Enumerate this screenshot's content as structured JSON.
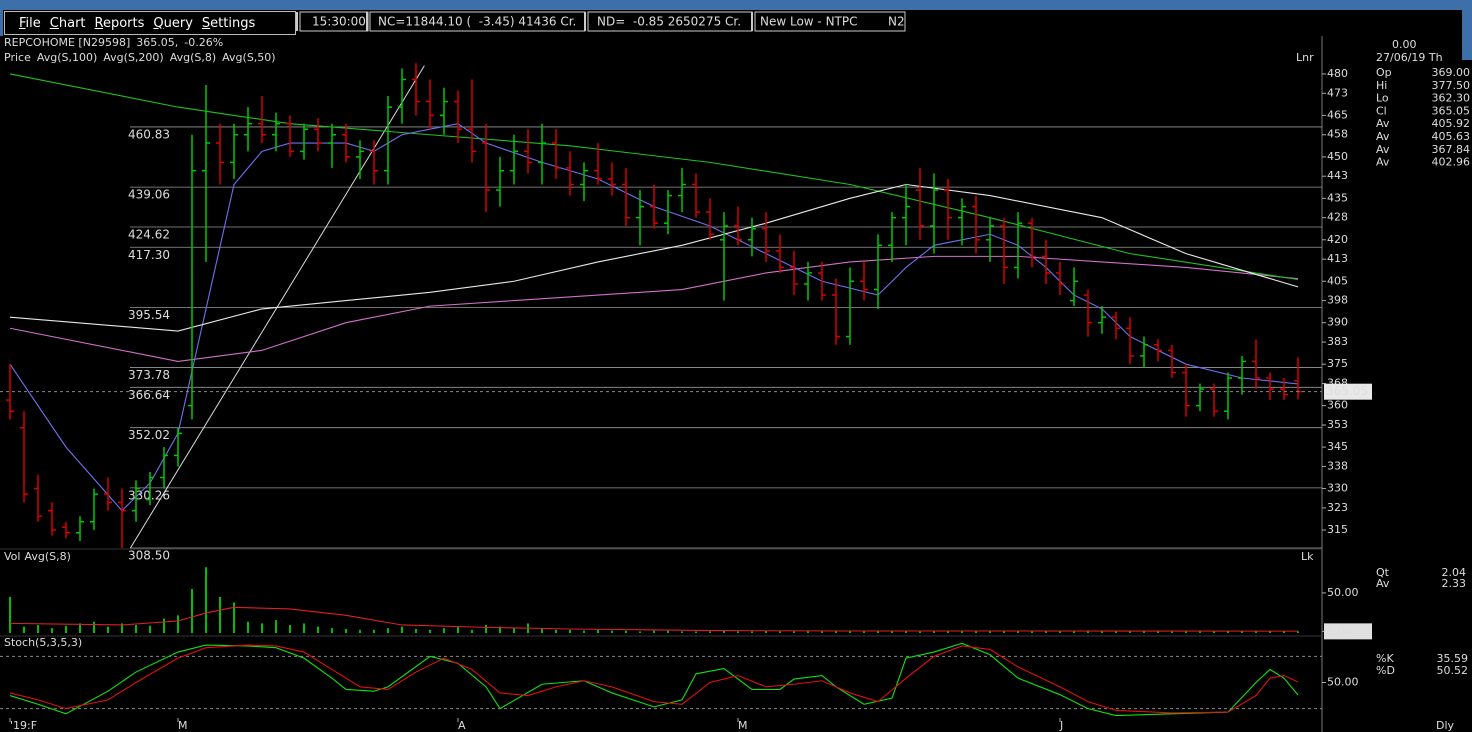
{
  "menu": [
    "File",
    "Chart",
    "Reports",
    "Query",
    "Settings"
  ],
  "toolbar": {
    "time": "15:30:00",
    "nc": "NC=11844.10 (  -3.45) 41436 Cr.",
    "nd": "ND=  -0.85 2650275 Cr.",
    "alert": "New Low - NTPC",
    "alert_code": "N2"
  },
  "header": {
    "symbol": "REPCOHOME [N29598]",
    "price": "365.05,",
    "change": "-0.26%"
  },
  "price_panel": {
    "type": "ohlc",
    "price_label": "Price",
    "up_color": "#00c800",
    "down_color": "#d80000",
    "scale_label": "Lnr",
    "lock_label": "Lk",
    "ylim": [
      308.5,
      493
    ],
    "yticks": [
      480,
      473,
      465,
      458,
      450,
      443,
      435,
      428,
      420,
      413,
      405,
      398,
      390,
      383,
      375,
      368,
      360,
      353,
      345,
      338,
      330,
      323,
      315
    ],
    "bars": [
      [
        362,
        375,
        355,
        358
      ],
      [
        352,
        358,
        325,
        328
      ],
      [
        330,
        335,
        318,
        320
      ],
      [
        322,
        325,
        313,
        315
      ],
      [
        316,
        318,
        312,
        314
      ],
      [
        314,
        320,
        311,
        318
      ],
      [
        318,
        330,
        315,
        328
      ],
      [
        328,
        334,
        322,
        325
      ],
      [
        325,
        330,
        308.5,
        322
      ],
      [
        322,
        333,
        318,
        330
      ],
      [
        326,
        336,
        324,
        334
      ],
      [
        334,
        345,
        330,
        342
      ],
      [
        342,
        352,
        338,
        350
      ],
      [
        360,
        458,
        355,
        445
      ],
      [
        445,
        476,
        412,
        455
      ],
      [
        455,
        462,
        440,
        448
      ],
      [
        448,
        462,
        442,
        458
      ],
      [
        458,
        468,
        452,
        462
      ],
      [
        462,
        472,
        455,
        458
      ],
      [
        458,
        466,
        452,
        462
      ],
      [
        462,
        465,
        450,
        452
      ],
      [
        452,
        462,
        449,
        460
      ],
      [
        460,
        464,
        452,
        455
      ],
      [
        455,
        462,
        446,
        458
      ],
      [
        458,
        462,
        448,
        450
      ],
      [
        450,
        456,
        442,
        452
      ],
      [
        452,
        456,
        440,
        445
      ],
      [
        445,
        472,
        440,
        468
      ],
      [
        468,
        482,
        462,
        478
      ],
      [
        478,
        484,
        465,
        470
      ],
      [
        470,
        478,
        460,
        465
      ],
      [
        465,
        475,
        458,
        470
      ],
      [
        470,
        474,
        455,
        460
      ],
      [
        460,
        478,
        448,
        452
      ],
      [
        455,
        462,
        430,
        438
      ],
      [
        438,
        450,
        432,
        445
      ],
      [
        445,
        458,
        440,
        452
      ],
      [
        452,
        460,
        444,
        448
      ],
      [
        448,
        462,
        440,
        455
      ],
      [
        455,
        460,
        442,
        446
      ],
      [
        446,
        452,
        436,
        440
      ],
      [
        440,
        448,
        434,
        445
      ],
      [
        445,
        455,
        440,
        442
      ],
      [
        442,
        448,
        436,
        440
      ],
      [
        440,
        446,
        425,
        428
      ],
      [
        428,
        438,
        418,
        432
      ],
      [
        432,
        440,
        424,
        426
      ],
      [
        426,
        438,
        422,
        436
      ],
      [
        436,
        446,
        430,
        440
      ],
      [
        440,
        444,
        428,
        430
      ],
      [
        430,
        435,
        420,
        422
      ],
      [
        420,
        430,
        398,
        425
      ],
      [
        425,
        432,
        418,
        420
      ],
      [
        420,
        428,
        414,
        424
      ],
      [
        424,
        430,
        412,
        416
      ],
      [
        416,
        422,
        408,
        410
      ],
      [
        410,
        416,
        400,
        404
      ],
      [
        404,
        412,
        398,
        408
      ],
      [
        408,
        412,
        398,
        400
      ],
      [
        400,
        406,
        382,
        385
      ],
      [
        385,
        410,
        382,
        405
      ],
      [
        405,
        412,
        398,
        402
      ],
      [
        402,
        422,
        395,
        418
      ],
      [
        418,
        430,
        412,
        428
      ],
      [
        428,
        440,
        418,
        432
      ],
      [
        438,
        446,
        420,
        425
      ],
      [
        425,
        444,
        415,
        438
      ],
      [
        438,
        442,
        420,
        428
      ],
      [
        428,
        435,
        418,
        432
      ],
      [
        432,
        436,
        415,
        420
      ],
      [
        420,
        428,
        412,
        425
      ],
      [
        425,
        428,
        404,
        410
      ],
      [
        410,
        430,
        406,
        426
      ],
      [
        426,
        428,
        410,
        414
      ],
      [
        414,
        420,
        404,
        408
      ],
      [
        408,
        412,
        400,
        404
      ],
      [
        398,
        410,
        396,
        405
      ],
      [
        400,
        402,
        385,
        390
      ],
      [
        390,
        396,
        386,
        392
      ],
      [
        392,
        394,
        384,
        388
      ],
      [
        388,
        392,
        375,
        378
      ],
      [
        378,
        385,
        374,
        382
      ],
      [
        382,
        384,
        376,
        380
      ],
      [
        380,
        382,
        370,
        372
      ],
      [
        372,
        375,
        356,
        360
      ],
      [
        360,
        368,
        358,
        366
      ],
      [
        366,
        368,
        356,
        358
      ],
      [
        358,
        372,
        355,
        370
      ],
      [
        370,
        378,
        364,
        376
      ],
      [
        376,
        384,
        366,
        370
      ],
      [
        370,
        372,
        362,
        366
      ],
      [
        366,
        370,
        362,
        364
      ],
      [
        369,
        377.5,
        362.3,
        365.05
      ]
    ],
    "moving_averages": [
      {
        "name": "Avg(S,100)",
        "color": "#d070c8",
        "x": [
          0,
          12,
          18,
          24,
          30,
          36,
          42,
          48,
          54,
          60,
          66,
          72,
          78,
          84,
          92
        ],
        "values": [
          388,
          376,
          380,
          390,
          396,
          398,
          400,
          402,
          408,
          412,
          414,
          414,
          412,
          410,
          405.92
        ]
      },
      {
        "name": "Avg(S,200)",
        "color": "#20c020",
        "x": [
          0,
          12,
          20,
          30,
          40,
          50,
          60,
          70,
          80,
          92
        ],
        "values": [
          480,
          468,
          462,
          458,
          454,
          448,
          440,
          428,
          415,
          405.63
        ]
      },
      {
        "name": "Avg(S,8)",
        "color": "#7070f0",
        "x": [
          0,
          4,
          8,
          10,
          12,
          14,
          16,
          18,
          20,
          24,
          26,
          28,
          30,
          32,
          34,
          38,
          42,
          46,
          50,
          54,
          58,
          62,
          64,
          66,
          68,
          70,
          72,
          74,
          76,
          78,
          80,
          84,
          88,
          92
        ],
        "values": [
          375,
          345,
          322,
          332,
          350,
          395,
          440,
          452,
          455,
          455,
          452,
          458,
          460,
          462,
          455,
          448,
          442,
          432,
          425,
          415,
          405,
          400,
          410,
          418,
          420,
          422,
          418,
          410,
          400,
          395,
          385,
          375,
          370,
          367.84
        ]
      },
      {
        "name": "Avg(S,50)",
        "color": "#e8e8e8",
        "x": [
          0,
          12,
          18,
          24,
          30,
          36,
          42,
          48,
          54,
          60,
          64,
          70,
          78,
          84,
          92
        ],
        "values": [
          392,
          387,
          395,
          398,
          401,
          405,
          412,
          418,
          426,
          435,
          440,
          436,
          428,
          415,
          402.96
        ]
      }
    ],
    "fib_levels": [
      460.83,
      439.06,
      424.62,
      {
        "value": 417.3,
        "label": "417.30"
      },
      395.54,
      373.78,
      366.64,
      352.02,
      330.26,
      {
        "value": 308.5,
        "label": "308.50"
      }
    ],
    "trendline": {
      "x": [
        8.6,
        29.6
      ],
      "values": [
        308.5,
        483
      ]
    },
    "last_price": 365.05
  },
  "volume_panel": {
    "title": "Vol",
    "color": "#00c000",
    "ylim": [
      0,
      101
    ],
    "yticks": [
      {
        "value": 50,
        "label": "50.00"
      }
    ],
    "values": [
      45,
      8,
      10,
      6,
      9,
      12,
      14,
      8,
      12,
      10,
      9,
      18,
      22,
      55,
      82,
      45,
      38,
      14,
      12,
      16,
      10,
      12,
      8,
      6,
      5,
      4,
      4,
      6,
      8,
      5,
      4,
      6,
      8,
      4,
      10,
      8,
      6,
      12,
      5,
      4,
      4,
      3,
      4,
      3,
      3,
      2,
      3,
      3,
      2,
      2,
      2,
      3,
      2,
      2,
      3,
      2,
      2,
      3,
      2,
      2,
      2,
      3,
      2,
      2,
      3,
      3,
      2,
      2,
      2,
      3,
      2,
      2,
      2,
      3,
      2,
      2,
      2,
      3,
      2,
      2,
      2,
      2,
      2,
      2,
      3,
      2,
      2,
      2,
      2,
      2,
      2,
      2,
      2.04
    ],
    "average": {
      "name": "Avg(S,8)",
      "color": "#e02020",
      "x": [
        0,
        8,
        12,
        14,
        16,
        20,
        24,
        28,
        34,
        40,
        50,
        60,
        70,
        80,
        92
      ],
      "values": [
        12,
        10,
        15,
        25,
        32,
        30,
        22,
        10,
        7,
        5,
        3,
        2.5,
        2.5,
        2.4,
        2.33
      ]
    },
    "last": 2.04
  },
  "stoch_panel": {
    "title": "Stoch(5,3,5,3)",
    "ylim": [
      0,
      100
    ],
    "yticks": [
      {
        "value": 50,
        "label": "50.00"
      }
    ],
    "levels": [
      20,
      80
    ],
    "series": [
      {
        "name": "%K",
        "color": "#10e010",
        "x": [
          0,
          2,
          4,
          7,
          9,
          12,
          14,
          17,
          19,
          21,
          23,
          24,
          26,
          27,
          30,
          32,
          34,
          35,
          38,
          41,
          43,
          46,
          48,
          49,
          51,
          53,
          55,
          56,
          58,
          59,
          61,
          63,
          64,
          66,
          68,
          70,
          72,
          75,
          77,
          79,
          83,
          87,
          89,
          90,
          91,
          92
        ],
        "values": [
          35,
          25,
          14,
          40,
          62,
          85,
          93,
          92,
          90,
          78,
          55,
          42,
          40,
          45,
          80,
          72,
          45,
          20,
          48,
          52,
          38,
          22,
          30,
          60,
          66,
          42,
          42,
          54,
          58,
          45,
          25,
          32,
          78,
          85,
          95,
          82,
          55,
          36,
          20,
          12,
          14,
          16,
          50,
          65,
          55,
          35.59
        ]
      },
      {
        "name": "%D",
        "color": "#e01010",
        "x": [
          0,
          2,
          4,
          7,
          9,
          12,
          14,
          17,
          19,
          21,
          23,
          25,
          27,
          29,
          31,
          33,
          35,
          37,
          39,
          41,
          43,
          46,
          48,
          50,
          52,
          54,
          56,
          58,
          60,
          62,
          64,
          66,
          68,
          70,
          72,
          75,
          77,
          79,
          83,
          87,
          89,
          90,
          91,
          92
        ],
        "values": [
          38,
          30,
          20,
          30,
          50,
          78,
          90,
          93,
          92,
          85,
          65,
          45,
          42,
          62,
          78,
          65,
          38,
          35,
          45,
          52,
          45,
          28,
          25,
          50,
          58,
          45,
          48,
          52,
          38,
          28,
          55,
          80,
          92,
          88,
          68,
          45,
          28,
          18,
          15,
          16,
          35,
          55,
          58,
          50.52
        ]
      }
    ]
  },
  "x_axis": {
    "ticks": [
      {
        "value": 0,
        "label": "'19:F"
      },
      {
        "value": 12,
        "label": "M"
      },
      {
        "value": 32,
        "label": "A"
      },
      {
        "value": 52,
        "label": "M"
      },
      {
        "value": 75,
        "label": "J"
      }
    ],
    "period": "Dly"
  },
  "info": {
    "value": "0.00",
    "date": "27/06/19 Th",
    "rows": [
      [
        "Op",
        "369.00"
      ],
      [
        "Hi",
        "377.50"
      ],
      [
        "Lo",
        "362.30"
      ],
      [
        "Cl",
        "365.05"
      ],
      [
        "Av",
        "405.92"
      ],
      [
        "Av",
        "405.63"
      ],
      [
        "Av",
        "367.84"
      ],
      [
        "Av",
        "402.96"
      ]
    ],
    "vol_rows": [
      [
        "Qt",
        "2.04"
      ],
      [
        "Av",
        "2.33"
      ]
    ],
    "stoch_rows": [
      [
        "%K",
        "35.59"
      ],
      [
        "%D",
        "50.52"
      ]
    ]
  }
}
